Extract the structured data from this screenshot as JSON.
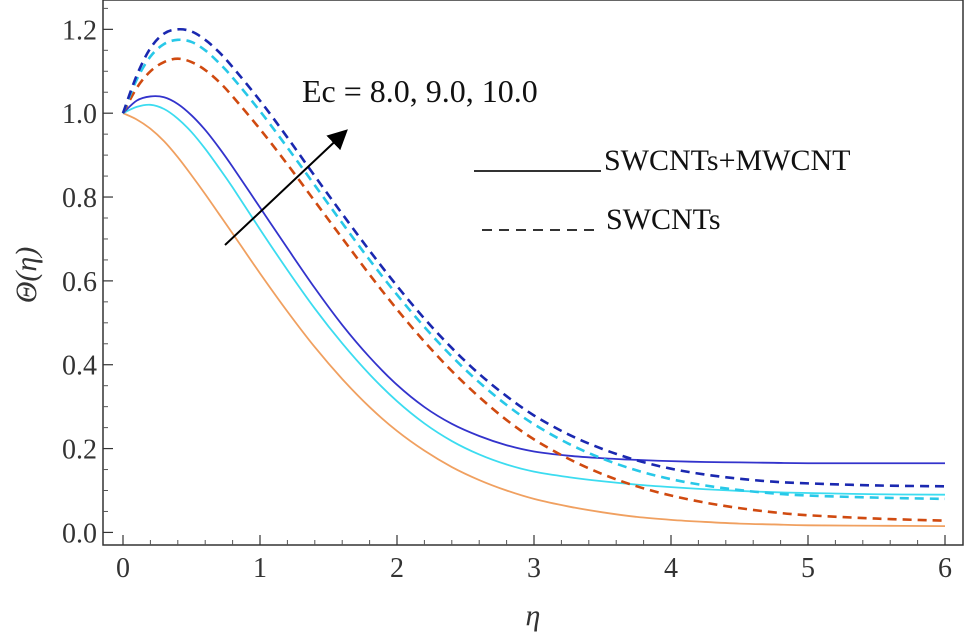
{
  "chart_data": {
    "type": "line",
    "title": "",
    "xlabel": "η",
    "ylabel": "Θ(η)",
    "xlim": [
      0,
      6
    ],
    "ylim": [
      -0.03,
      1.27
    ],
    "x_ticks": [
      "0",
      "1",
      "2",
      "3",
      "4",
      "5",
      "6"
    ],
    "y_ticks": [
      "0.0",
      "0.2",
      "0.4",
      "0.6",
      "0.8",
      "1.0",
      "1.2"
    ],
    "grid": false,
    "annotation": {
      "text": "Ec = 8.0, 9.0, 10.0"
    },
    "legend": [
      {
        "label": "SWCNTs+MWCNT",
        "style": "solid"
      },
      {
        "label": "SWCNTs",
        "style": "dashed"
      }
    ],
    "x": [
      0,
      0.1,
      0.2,
      0.3,
      0.4,
      0.5,
      0.6,
      0.7,
      0.8,
      1.0,
      1.2,
      1.4,
      1.6,
      1.8,
      2.0,
      2.2,
      2.4,
      2.6,
      2.8,
      3.0,
      3.25,
      3.5,
      3.75,
      4.0,
      4.25,
      4.5,
      4.75,
      5.0,
      5.5,
      6.0
    ],
    "series": [
      {
        "name": "SWCNTs+MWCNT, Ec = 8.0",
        "style": "solid",
        "color": "#f0a060",
        "values": [
          1.0,
          0.985,
          0.963,
          0.933,
          0.895,
          0.852,
          0.807,
          0.76,
          0.713,
          0.618,
          0.527,
          0.442,
          0.366,
          0.299,
          0.242,
          0.195,
          0.156,
          0.125,
          0.1,
          0.08,
          0.062,
          0.048,
          0.037,
          0.03,
          0.025,
          0.021,
          0.019,
          0.017,
          0.016,
          0.015
        ]
      },
      {
        "name": "SWCNTs+MWCNT, Ec = 9.0",
        "style": "solid",
        "color": "#3cdcf0",
        "values": [
          1.0,
          1.015,
          1.02,
          1.01,
          0.987,
          0.955,
          0.915,
          0.87,
          0.823,
          0.723,
          0.626,
          0.534,
          0.451,
          0.377,
          0.313,
          0.26,
          0.218,
          0.186,
          0.162,
          0.145,
          0.132,
          0.122,
          0.114,
          0.108,
          0.103,
          0.099,
          0.096,
          0.094,
          0.091,
          0.09
        ]
      },
      {
        "name": "SWCNTs+MWCNT, Ec = 10.0",
        "style": "solid",
        "color": "#3333cc",
        "values": [
          1.0,
          1.03,
          1.04,
          1.038,
          1.022,
          0.995,
          0.96,
          0.918,
          0.872,
          0.775,
          0.678,
          0.583,
          0.495,
          0.418,
          0.352,
          0.299,
          0.259,
          0.23,
          0.208,
          0.193,
          0.183,
          0.177,
          0.173,
          0.17,
          0.168,
          0.167,
          0.166,
          0.165,
          0.165,
          0.165
        ]
      },
      {
        "name": "SWCNTs, Ec = 8.0",
        "style": "dashed",
        "color": "#d04a10",
        "values": [
          1.0,
          1.06,
          1.1,
          1.122,
          1.13,
          1.122,
          1.103,
          1.075,
          1.04,
          0.962,
          0.878,
          0.79,
          0.702,
          0.615,
          0.532,
          0.455,
          0.385,
          0.323,
          0.268,
          0.222,
          0.176,
          0.139,
          0.11,
          0.088,
          0.071,
          0.058,
          0.048,
          0.041,
          0.033,
          0.028
        ]
      },
      {
        "name": "SWCNTs, Ec = 9.0",
        "style": "dashed",
        "color": "#28c8e8",
        "values": [
          1.0,
          1.08,
          1.135,
          1.165,
          1.175,
          1.17,
          1.15,
          1.12,
          1.085,
          1.005,
          0.918,
          0.828,
          0.738,
          0.65,
          0.567,
          0.49,
          0.42,
          0.358,
          0.304,
          0.258,
          0.212,
          0.176,
          0.148,
          0.127,
          0.112,
          0.101,
          0.093,
          0.088,
          0.083,
          0.08
        ]
      },
      {
        "name": "SWCNTs, Ec = 10.0",
        "style": "dashed",
        "color": "#1a28b0",
        "values": [
          1.0,
          1.09,
          1.155,
          1.19,
          1.2,
          1.195,
          1.175,
          1.146,
          1.11,
          1.03,
          0.942,
          0.85,
          0.76,
          0.672,
          0.588,
          0.51,
          0.44,
          0.378,
          0.325,
          0.279,
          0.234,
          0.199,
          0.172,
          0.152,
          0.138,
          0.128,
          0.121,
          0.117,
          0.112,
          0.11
        ]
      }
    ]
  }
}
